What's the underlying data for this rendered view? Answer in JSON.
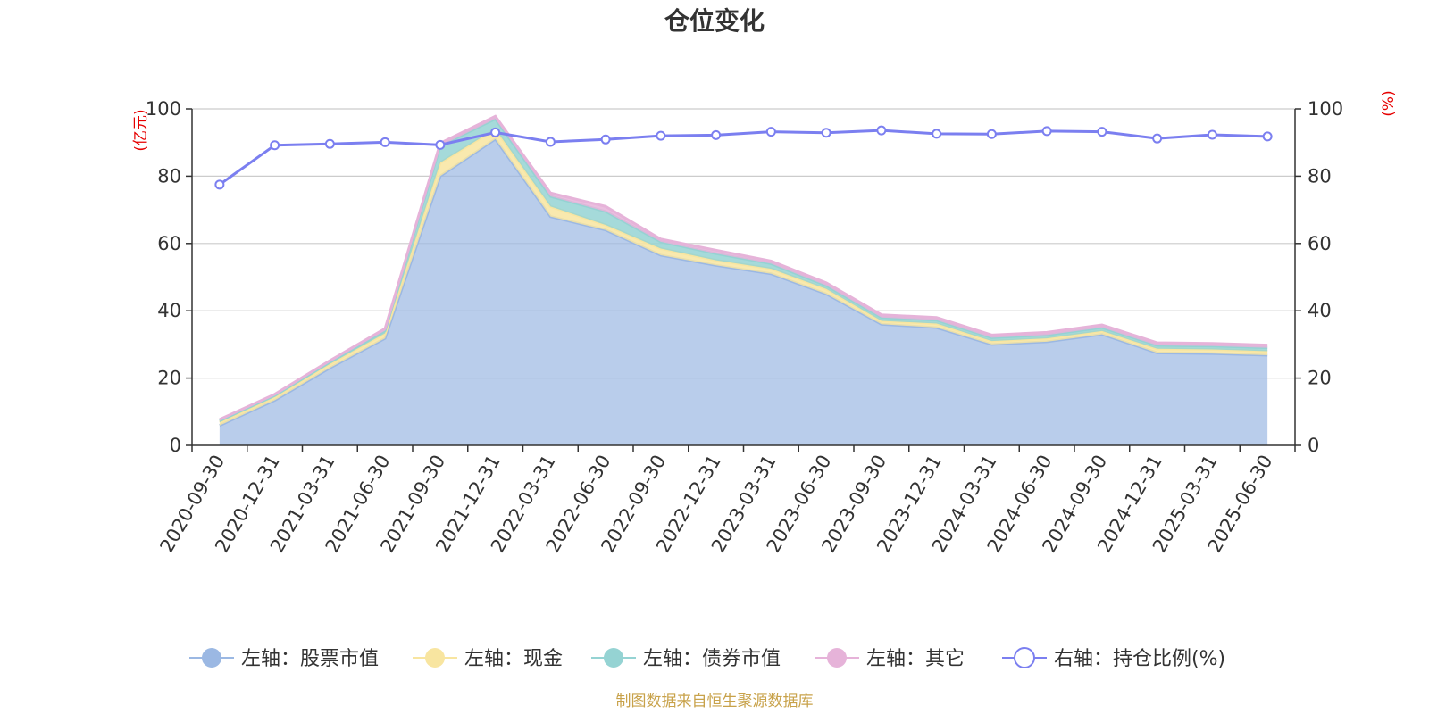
{
  "chart_data": {
    "type": "area",
    "title": "仓位变化",
    "categories": [
      "2020-09-30",
      "2020-12-31",
      "2021-03-31",
      "2021-06-30",
      "2021-09-30",
      "2021-12-31",
      "2022-03-31",
      "2022-06-30",
      "2022-09-30",
      "2022-12-31",
      "2023-03-31",
      "2023-06-30",
      "2023-09-30",
      "2023-12-31",
      "2024-03-31",
      "2024-06-30",
      "2024-09-30",
      "2024-12-31",
      "2025-03-31",
      "2025-06-30"
    ],
    "left_axis": {
      "unit": "(亿元)",
      "ylim": [
        0,
        100
      ],
      "ticks": [
        0,
        20,
        40,
        60,
        80,
        100
      ]
    },
    "right_axis": {
      "unit": "(%)",
      "ylim": [
        0,
        100
      ],
      "ticks": [
        0,
        20,
        40,
        60,
        80,
        100
      ]
    },
    "series": [
      {
        "name": "左轴：股票市值",
        "axis": "left",
        "stack": true,
        "color": "#9bb8e3",
        "values": [
          5.9,
          13.4,
          23.0,
          31.8,
          80.0,
          91.0,
          68.0,
          64.0,
          56.5,
          53.5,
          51.0,
          45.0,
          36.0,
          35.0,
          30.0,
          30.8,
          33.0,
          27.5,
          27.3,
          26.8
        ]
      },
      {
        "name": "左轴：现金",
        "axis": "left",
        "stack": true,
        "color": "#f8e5a0",
        "values": [
          1.0,
          1.0,
          1.2,
          1.5,
          4.0,
          3.0,
          3.0,
          1.5,
          2.0,
          1.5,
          1.5,
          1.5,
          1.0,
          1.2,
          1.0,
          1.0,
          1.0,
          1.2,
          1.2,
          1.2
        ]
      },
      {
        "name": "左轴：债券市值",
        "axis": "left",
        "stack": true,
        "color": "#95d3d3",
        "values": [
          0.4,
          0.4,
          0.5,
          0.8,
          5.0,
          3.0,
          3.0,
          4.0,
          2.0,
          2.0,
          1.5,
          1.0,
          1.0,
          1.0,
          1.0,
          1.0,
          1.0,
          1.0,
          1.0,
          1.0
        ]
      },
      {
        "name": "左轴：其它",
        "axis": "left",
        "stack": true,
        "color": "#e6b3d9",
        "values": [
          0.4,
          0.4,
          0.5,
          0.6,
          0.8,
          0.8,
          1.0,
          1.5,
          0.8,
          1.0,
          0.8,
          0.8,
          0.8,
          0.8,
          0.8,
          0.8,
          0.8,
          0.8,
          0.8,
          0.8
        ]
      },
      {
        "name": "右轴：持仓比例(%)",
        "axis": "right",
        "type": "line",
        "color": "#7b7ff0",
        "values": [
          77.5,
          89.2,
          89.6,
          90.1,
          89.3,
          93.0,
          90.2,
          90.9,
          92.0,
          92.2,
          93.2,
          92.9,
          93.6,
          92.6,
          92.5,
          93.4,
          93.2,
          91.2,
          92.3,
          91.8
        ]
      }
    ],
    "legend_position": "bottom",
    "grid": true,
    "source": "制图数据来自恒生聚源数据库"
  }
}
